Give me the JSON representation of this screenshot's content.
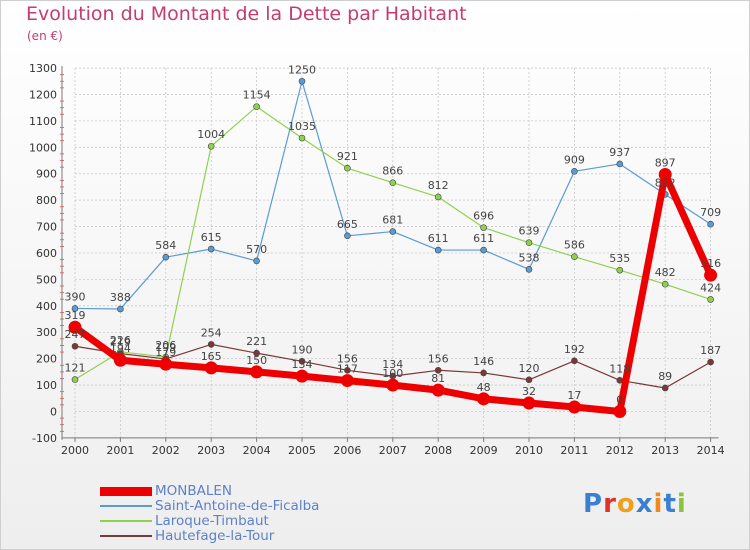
{
  "title": "Evolution du Montant de la Dette par Habitant",
  "subtitle": "(en €)",
  "logo": "Proxiti",
  "colors": {
    "title": "#c43c71",
    "legend_text": "#5e81c9",
    "axis": "#7a7a7a",
    "grid": "#c8c8c8",
    "axis_ticks": "#e05050"
  },
  "chart_data": {
    "type": "line",
    "title": "Evolution du Montant de la Dette par Habitant",
    "ylabel": "(en €)",
    "xlabel": "",
    "x": [
      "2000",
      "2001",
      "2002",
      "2003",
      "2004",
      "2005",
      "2006",
      "2007",
      "2008",
      "2009",
      "2010",
      "2011",
      "2012",
      "2013",
      "2014"
    ],
    "ylim": [
      -100,
      1300
    ],
    "yticks": [
      -100,
      0,
      100,
      200,
      300,
      400,
      500,
      600,
      700,
      800,
      900,
      1000,
      1100,
      1200,
      1300
    ],
    "grid": true,
    "legend_position": "bottom-left",
    "series": [
      {
        "name": "MONBALEN",
        "color": "#ee0000",
        "width": 7,
        "marker": 6,
        "values": [
          319,
          194,
          179,
          165,
          150,
          134,
          117,
          100,
          81,
          48,
          32,
          17,
          0,
          897,
          516
        ],
        "labels": [
          "319",
          "194",
          "179",
          "165",
          "150",
          "134",
          "117",
          "100",
          "81",
          "48",
          "32",
          "17",
          "0",
          "897",
          "516"
        ]
      },
      {
        "name": "Saint-Antoine-de-Ficalba",
        "color": "#5a9bd5",
        "width": 1.2,
        "marker": 3,
        "values": [
          390,
          388,
          584,
          615,
          570,
          1250,
          665,
          681,
          611,
          611,
          538,
          909,
          937,
          822,
          709
        ],
        "labels": [
          "390",
          "388",
          "584",
          "615",
          "570",
          "1250",
          "665",
          "681",
          "611",
          "611",
          "538",
          "909",
          "937",
          "822",
          "709"
        ]
      },
      {
        "name": "Laroque-Timbaut",
        "color": "#8fd14f",
        "width": 1.2,
        "marker": 3,
        "values": [
          121,
          226,
          206,
          1004,
          1154,
          1035,
          921,
          866,
          812,
          696,
          639,
          586,
          535,
          482,
          424
        ],
        "labels": [
          "121",
          "226",
          "206",
          "1004",
          "1154",
          "1035",
          "921",
          "866",
          "812",
          "696",
          "639",
          "586",
          "535",
          "482",
          "424"
        ]
      },
      {
        "name": "Hautefage-la-Tour",
        "color": "#7a3838",
        "width": 1.2,
        "marker": 3,
        "values": [
          247,
          219,
          199,
          254,
          221,
          190,
          156,
          134,
          156,
          146,
          120,
          192,
          118,
          89,
          187
        ],
        "labels": [
          "247",
          "219",
          "199",
          "254",
          "221",
          "190",
          "156",
          "134",
          "156",
          "146",
          "120",
          "192",
          "118",
          "89",
          "187"
        ]
      }
    ]
  }
}
